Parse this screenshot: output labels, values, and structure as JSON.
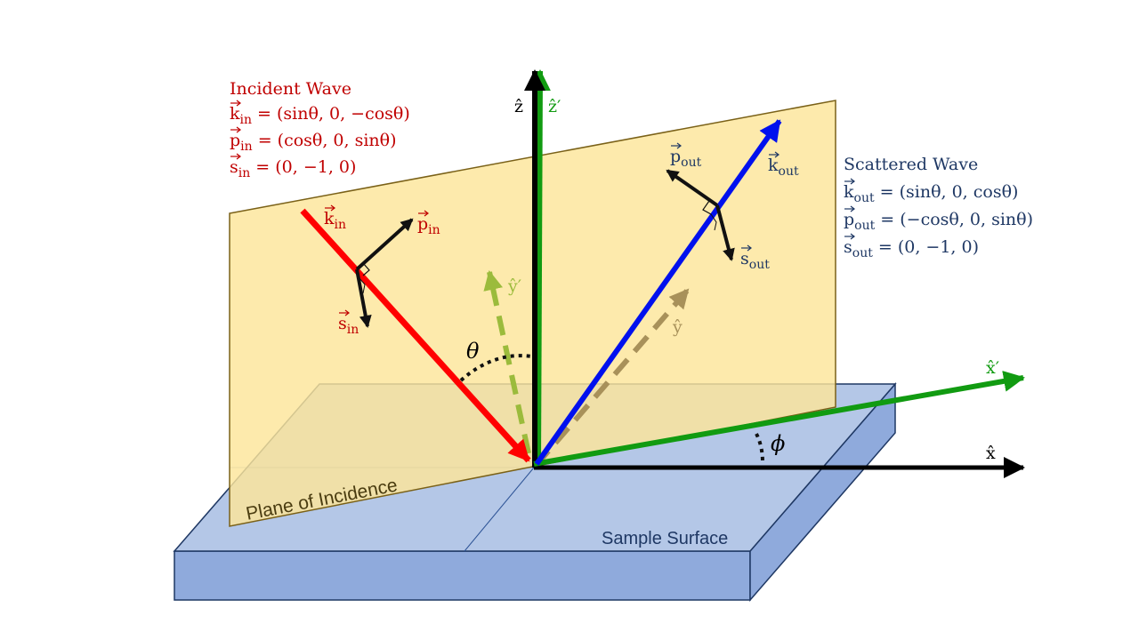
{
  "colors": {
    "incident": "#c00000",
    "scattered": "#1f3864",
    "red_arrow": "#ff0000",
    "blue_arrow": "#0010ee",
    "green_arrow": "#119b11",
    "light_green": "#9bbb3c",
    "tan": "#a8915a",
    "plane_fill": "#fde59a",
    "plane_stroke": "#7a6118",
    "surface_top": "#b4c7e7",
    "surface_side": "#8faadc",
    "surface_stroke": "#1f3864"
  },
  "incident": {
    "title": "Incident Wave",
    "eq_k": {
      "v": "k",
      "s": "in",
      "rhs": " = (sinθ, 0, −cosθ)"
    },
    "eq_p": {
      "v": "p",
      "s": "in",
      "rhs": " = (cosθ, 0, sinθ)"
    },
    "eq_s": {
      "v": "s",
      "s": "in",
      "rhs": " = (0, −1, 0)"
    }
  },
  "scattered": {
    "title": "Scattered Wave",
    "eq_k": {
      "v": "k",
      "s": "out",
      "rhs": " = (sinθ, 0, cosθ)"
    },
    "eq_p": {
      "v": "p",
      "s": "out",
      "rhs": " = (−cosθ, 0, sinθ)"
    },
    "eq_s": {
      "v": "s",
      "s": "out",
      "rhs": " = (0, −1, 0)"
    }
  },
  "labels": {
    "k_in": {
      "v": "k",
      "s": "in"
    },
    "p_in": {
      "v": "p",
      "s": "in"
    },
    "s_in": {
      "v": "s",
      "s": "in"
    },
    "k_out": {
      "v": "k",
      "s": "out"
    },
    "p_out": {
      "v": "p",
      "s": "out"
    },
    "s_out": {
      "v": "s",
      "s": "out"
    },
    "z_hat": "ẑ",
    "z_prime": "ẑ′",
    "y_hat": "ŷ",
    "y_prime": "ŷ′",
    "x_hat": "x̂",
    "x_prime": "x̂′",
    "theta": "θ",
    "phi": "ϕ",
    "plane_of_incidence": "Plane of Incidence",
    "sample_surface": "Sample Surface"
  }
}
